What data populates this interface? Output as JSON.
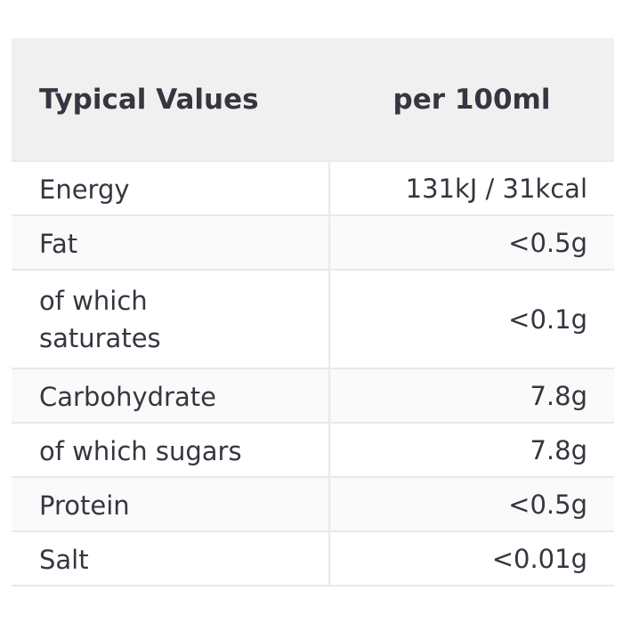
{
  "table": {
    "header": {
      "label": "Typical Values",
      "value": "per 100ml"
    },
    "rows": [
      {
        "label": "Energy",
        "value": "131kJ / 31kcal"
      },
      {
        "label": "Fat",
        "value": "<0.5g"
      },
      {
        "label": "of which saturates",
        "value": "<0.1g"
      },
      {
        "label": "Carbohydrate",
        "value": "7.8g"
      },
      {
        "label": "of which sugars",
        "value": "7.8g"
      },
      {
        "label": "Protein",
        "value": "<0.5g"
      },
      {
        "label": "Salt",
        "value": "<0.01g"
      }
    ],
    "colors": {
      "text": "#363640",
      "header_background": "#f0f0f0",
      "row_alt_background": "#fafafa",
      "border": "#e9e9e9",
      "page_background": "#ffffff"
    }
  }
}
